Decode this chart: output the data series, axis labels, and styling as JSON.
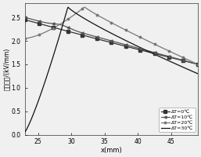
{
  "title": "",
  "xlabel": "x(mm)",
  "ylabel": "电场强度/(kV/mm)",
  "xlim": [
    23,
    49
  ],
  "ylim": [
    0,
    2.8
  ],
  "xticks": [
    25,
    30,
    35,
    40,
    45
  ],
  "yticks": [
    0,
    0.5,
    1.0,
    1.5,
    2.0,
    2.5
  ],
  "legend_labels": [
    "ΔT=0℃",
    "ΔT=10℃",
    "ΔT=20℃",
    "ΔT=30℃"
  ],
  "background_color": "#f0f0f0",
  "line_color": "#1a1a1a",
  "dT0_color": "#333333",
  "dT10_color": "#555555",
  "dT20_color": "#777777",
  "dT30_color": "#111111"
}
